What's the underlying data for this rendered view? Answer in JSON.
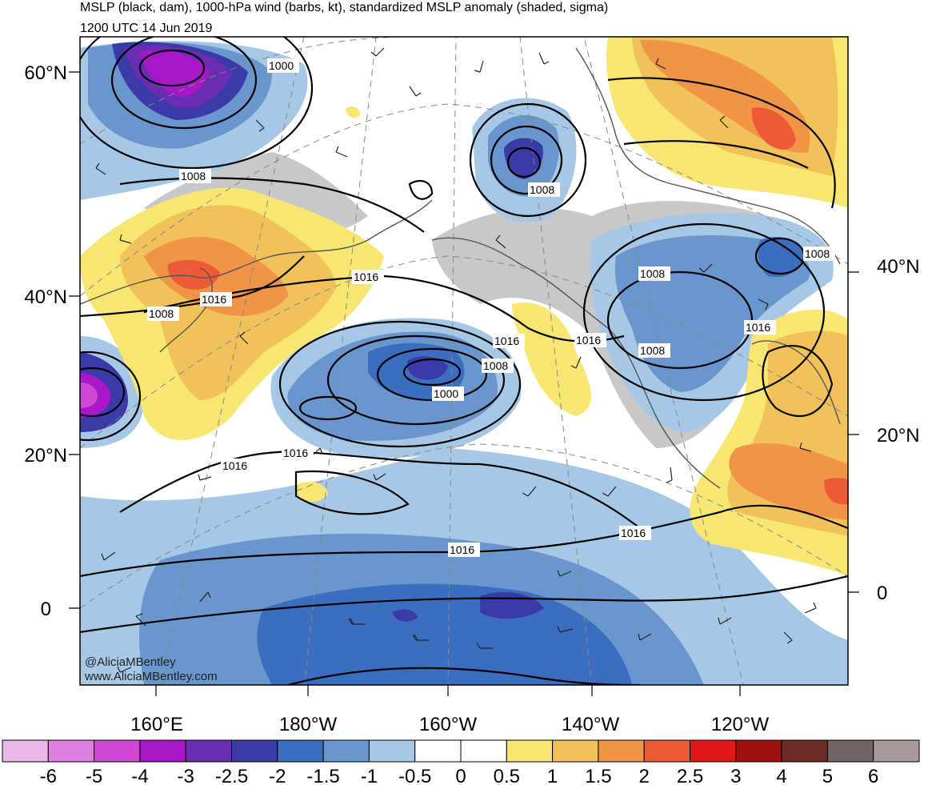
{
  "header": {
    "title": "MSLP (black, dam), 1000-hPa wind (barbs, kt), standardized MSLP anomaly (shaded, sigma)",
    "valid_time": "1200 UTC 14 Jun 2019"
  },
  "map": {
    "lat_labels_left": [
      "60°N",
      "40°N",
      "20°N",
      "0"
    ],
    "lat_labels_right": [
      "40°N",
      "20°N",
      "0"
    ],
    "lon_labels_bottom": [
      "160°E",
      "180°W",
      "160°W",
      "140°W",
      "120°W"
    ],
    "contour_labels": [
      "1000",
      "1008",
      "1016",
      "1016",
      "1008",
      "1000",
      "1008",
      "1016",
      "1016",
      "1016",
      "1016",
      "1008",
      "1008",
      "1016",
      "1016",
      "1008",
      "1016",
      "1008"
    ],
    "credits": [
      "@AliciaMBentley",
      "www.AliciaMBentley.com"
    ]
  },
  "colorbar": {
    "labels": [
      "-6",
      "-5",
      "-4",
      "-3",
      "-2.5",
      "-2",
      "-1.5",
      "-1",
      "-0.5",
      "0",
      "0.5",
      "1",
      "1.5",
      "2",
      "2.5",
      "3",
      "4",
      "5",
      "6"
    ],
    "colors": [
      "#e9b8e8",
      "#e07fe0",
      "#d048d6",
      "#a818c8",
      "#6a2cb0",
      "#3a3aa8",
      "#3c6ec0",
      "#6996cc",
      "#a6c8e6",
      "#ffffff",
      "#ffffff",
      "#f8e672",
      "#f2c25a",
      "#f09448",
      "#ee5a38",
      "#e01818",
      "#a01010",
      "#6e2a24",
      "#736463",
      "#a89a98"
    ]
  }
}
